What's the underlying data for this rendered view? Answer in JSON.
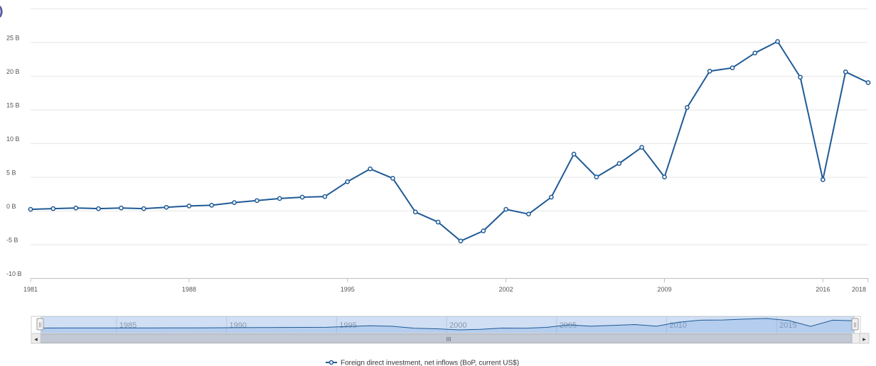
{
  "chart_data": {
    "type": "line",
    "x": [
      1981,
      1982,
      1983,
      1984,
      1985,
      1986,
      1987,
      1988,
      1989,
      1990,
      1991,
      1992,
      1993,
      1994,
      1995,
      1996,
      1997,
      1998,
      1999,
      2000,
      2001,
      2002,
      2003,
      2004,
      2005,
      2006,
      2007,
      2008,
      2009,
      2010,
      2011,
      2012,
      2013,
      2014,
      2015,
      2016,
      2017,
      2018
    ],
    "series": [
      {
        "name": "Foreign direct investment, net inflows (BoP, current US$)",
        "color": "#1f5a96",
        "values": [
          0.2,
          0.3,
          0.4,
          0.3,
          0.4,
          0.3,
          0.5,
          0.7,
          0.8,
          1.2,
          1.5,
          1.8,
          2.0,
          2.1,
          4.3,
          6.2,
          4.8,
          -0.2,
          -1.7,
          -4.5,
          -3.0,
          0.2,
          -0.5,
          2.0,
          8.4,
          5.0,
          7.0,
          9.4,
          5.0,
          15.3,
          20.7,
          21.2,
          23.4,
          25.1,
          19.8,
          4.6,
          20.6,
          19.0
        ]
      }
    ],
    "y_tick_labels": [
      "25 B",
      "20 B",
      "15 B",
      "10 B",
      "5 B",
      "0 B",
      "-5 B",
      "-10 B"
    ],
    "y_tick_values": [
      25,
      20,
      15,
      10,
      5,
      0,
      -5,
      -10
    ],
    "x_tick_labels": [
      "1981",
      "1988",
      "1995",
      "2002",
      "2009",
      "2016",
      "2018"
    ],
    "ylim": [
      -10,
      30
    ],
    "grid": true,
    "legend_position": "bottom-center",
    "navigator": {
      "tick_labels": [
        "1985",
        "1990",
        "1995",
        "2000",
        "2005",
        "2010",
        "2015"
      ],
      "scroll_left_arrow": "◂",
      "scroll_right_arrow": "▸",
      "scroll_grip": "III",
      "handle_grip": "||"
    }
  },
  "edge_glyphs": [
    ")",
    ")",
    ")"
  ]
}
